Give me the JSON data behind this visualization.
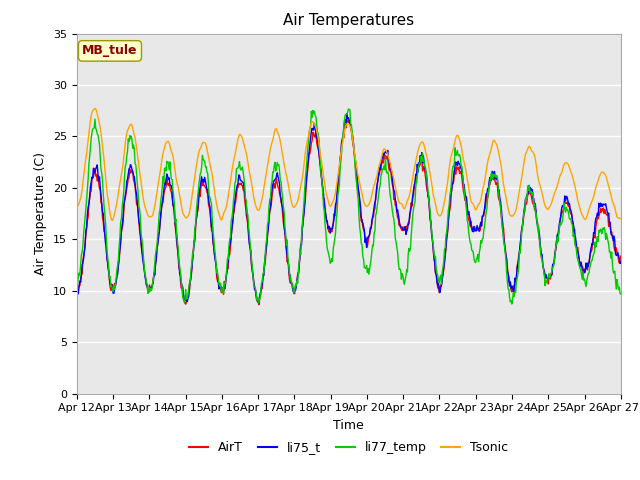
{
  "title": "Air Temperatures",
  "ylabel": "Air Temperature (C)",
  "xlabel": "Time",
  "annotation": "MB_tule",
  "annotation_color": "#8B0000",
  "annotation_bg": "#FFFFCC",
  "ylim": [
    0,
    35
  ],
  "yticks": [
    0,
    5,
    10,
    15,
    20,
    25,
    30,
    35
  ],
  "n_days": 15,
  "day_start": 12,
  "series_colors": {
    "AirT": "#FF0000",
    "li75_t": "#0000FF",
    "li77_temp": "#00CC00",
    "Tsonic": "#FFA500"
  },
  "background_color": "#E8E8E8",
  "figure_bg": "#FFFFFF",
  "grid_color": "#FFFFFF",
  "linewidth": 1.0,
  "title_fontsize": 11,
  "label_fontsize": 9,
  "tick_fontsize": 8
}
